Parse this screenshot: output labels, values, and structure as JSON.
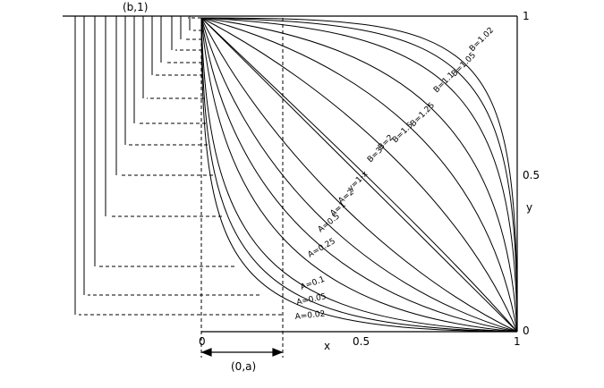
{
  "title_point": "(b,1)",
  "bottom_label": "(0,a)",
  "axis": {
    "x_label": "x",
    "y_label": "y",
    "x_ticks": [
      "0",
      "0.5",
      "1"
    ],
    "y_ticks": [
      "1",
      "0.5",
      "0"
    ]
  },
  "curves": {
    "B": [
      "B=1.02",
      "B=1.05",
      "B=1.1",
      "B=1.25",
      "B=1.5",
      "B=2",
      "B=3"
    ],
    "line": "y=1-x",
    "A": [
      "A=2",
      "A=1",
      "A=0.5",
      "A=0.25",
      "A=0.1",
      "A=0.05",
      "A=0.02"
    ]
  },
  "colors": {
    "ink": "#000000",
    "background": "#ffffff"
  }
}
